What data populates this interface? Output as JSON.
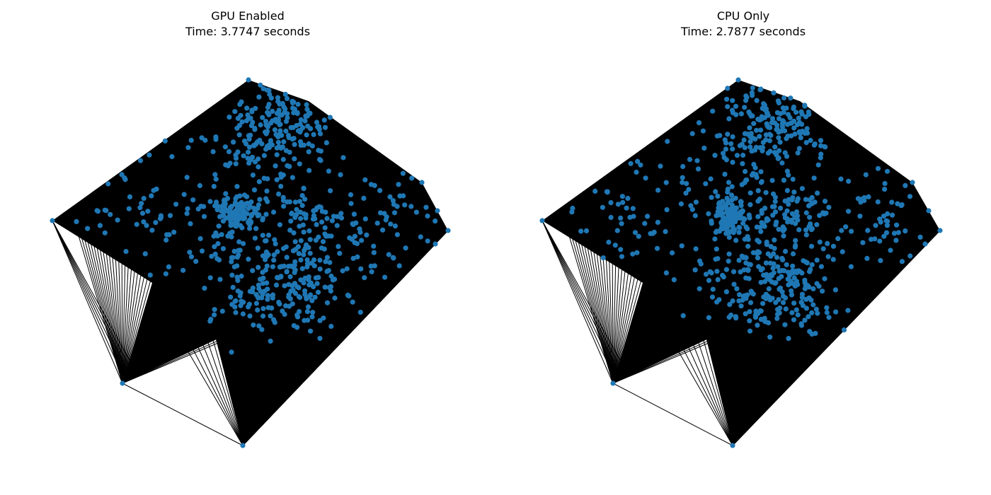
{
  "panels": [
    {
      "title_line1": "GPU Enabled",
      "title_line2": "Time: 3.7747 seconds"
    },
    {
      "title_line1": "CPU Only",
      "title_line2": "Time: 2.7877 seconds"
    }
  ],
  "colors": {
    "node": "#1f77b4",
    "edge": "#000000",
    "background": "#ffffff"
  }
}
